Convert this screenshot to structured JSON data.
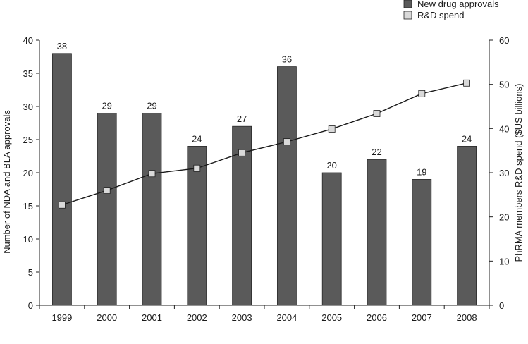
{
  "chart_data": {
    "type": "bar",
    "categories": [
      "1999",
      "2000",
      "2001",
      "2002",
      "2003",
      "2004",
      "2005",
      "2006",
      "2007",
      "2008"
    ],
    "series": [
      {
        "name": "New drug approvals",
        "type": "bar",
        "axis": "left",
        "values": [
          38,
          29,
          29,
          24,
          27,
          36,
          20,
          22,
          19,
          24
        ],
        "color": "#5a5a5a"
      },
      {
        "name": "R&D spend",
        "type": "line",
        "axis": "right",
        "values": [
          22.7,
          26.0,
          29.8,
          31.0,
          34.5,
          37.0,
          39.9,
          43.4,
          47.9,
          50.3
        ],
        "color": "#d9d9d9"
      }
    ],
    "ylabel": "Number of NDA and BLA approvals",
    "y2label": "PhRMA members R&D spend ($US billions)",
    "ylim": [
      0,
      40
    ],
    "y2lim": [
      0,
      60
    ],
    "yticks": [
      "0",
      "5",
      "10",
      "15",
      "20",
      "25",
      "30",
      "35",
      "40"
    ],
    "y2ticks": [
      "0",
      "10",
      "20",
      "30",
      "40",
      "50",
      "60"
    ],
    "legend_position": "top-right",
    "grid": false
  }
}
